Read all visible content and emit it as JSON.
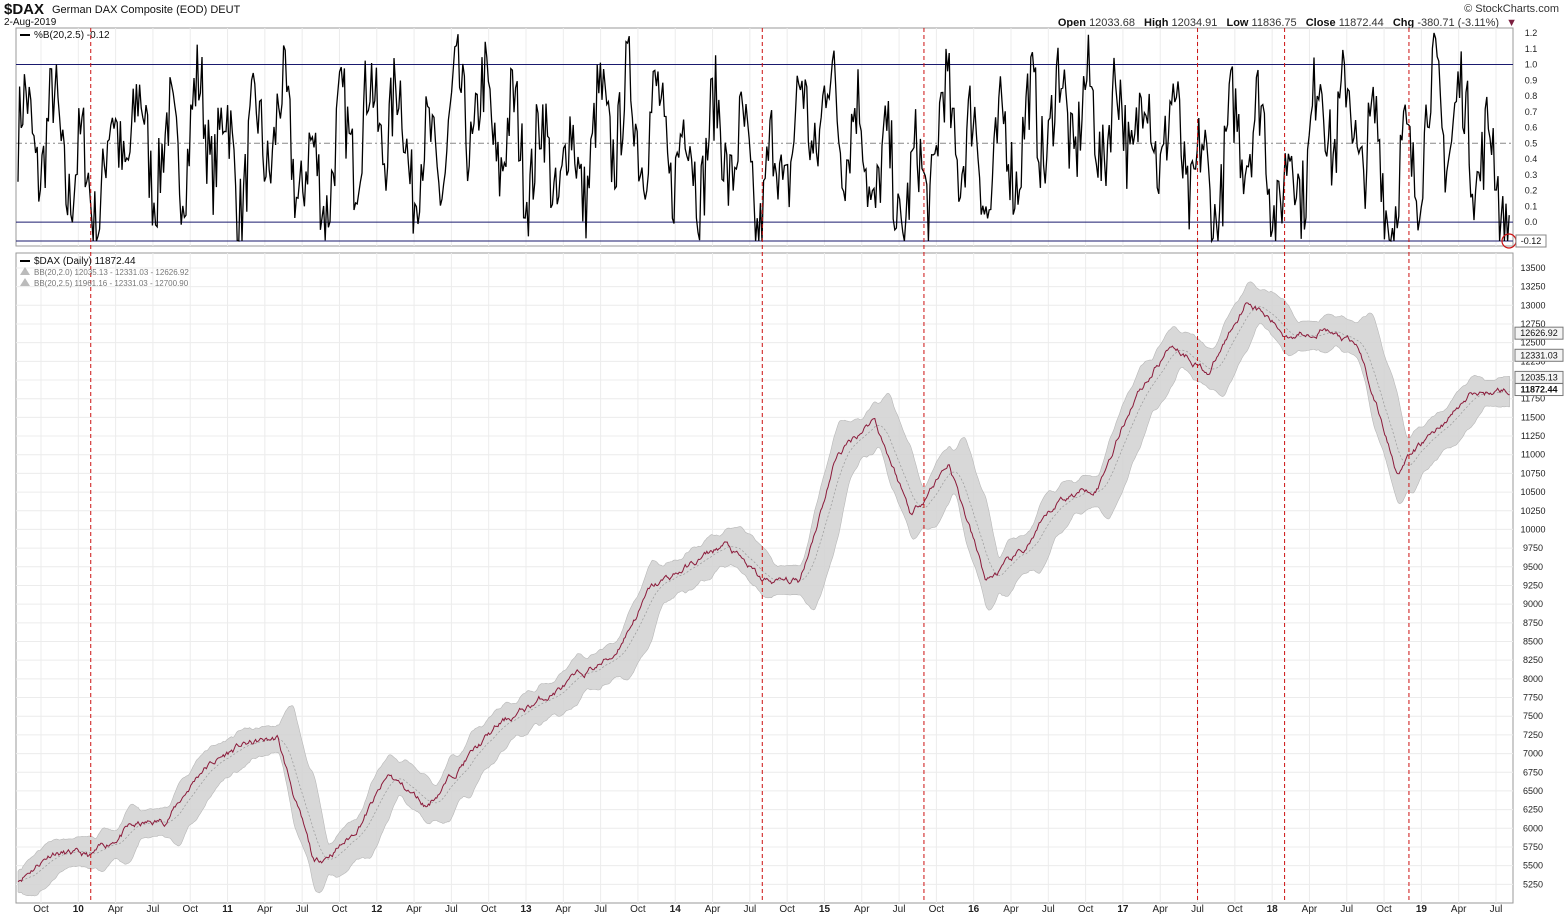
{
  "header": {
    "symbol": "$DAX",
    "description": "German DAX Composite (EOD)",
    "exchange": "DEUT",
    "date": "2-Aug-2019",
    "brand": "© StockCharts.com",
    "open_label": "Open",
    "open": "12033.68",
    "high_label": "High",
    "high": "12034.91",
    "low_label": "Low",
    "low": "11836.75",
    "close_label": "Close",
    "close": "11872.44",
    "chg_label": "Chg",
    "chg": "-380.71 (-3.11%)",
    "chg_icon": "down-triangle-icon"
  },
  "colors": {
    "price_line": "#8b1a3a",
    "band_fill": "#d4d4d4",
    "band_line": "#b0b0b0",
    "signal_line": "#cc1111",
    "indicator_line": "#000000",
    "ref_line": "#1a1a6e"
  },
  "chart_data": [
    {
      "type": "line",
      "title": "%B(20,2.5) -0.12",
      "ylim": [
        -0.12,
        1.2
      ],
      "y_ticks": [
        "1.2",
        "1.1",
        "1.0",
        "0.9",
        "0.8",
        "0.7",
        "0.6",
        "0.5",
        "0.4",
        "0.3",
        "0.2",
        "0.1",
        "0.0"
      ],
      "reference_lines": [
        1.0,
        0.5,
        0.0,
        -0.12
      ],
      "last_value_label": "-0.12",
      "last_value": -0.12,
      "x": [
        "2009-08",
        "2009-11",
        "2010-02",
        "2010-05",
        "2010-08",
        "2010-11",
        "2011-02",
        "2011-05",
        "2011-08",
        "2011-11",
        "2012-02",
        "2012-05",
        "2012-08",
        "2012-11",
        "2013-02",
        "2013-05",
        "2013-08",
        "2013-11",
        "2014-02",
        "2014-05",
        "2014-08",
        "2014-11",
        "2015-02",
        "2015-05",
        "2015-08",
        "2015-11",
        "2016-02",
        "2016-05",
        "2016-08",
        "2016-11",
        "2017-02",
        "2017-05",
        "2017-08",
        "2017-11",
        "2018-02",
        "2018-05",
        "2018-08",
        "2018-11",
        "2019-02",
        "2019-05",
        "2019-08"
      ],
      "values": [
        0.55,
        0.6,
        -0.05,
        0.7,
        0.3,
        0.8,
        0.2,
        0.75,
        0.0,
        0.65,
        0.85,
        0.15,
        0.9,
        0.6,
        0.35,
        0.2,
        0.8,
        0.7,
        0.3,
        0.6,
        -0.12,
        0.7,
        0.9,
        0.2,
        -0.12,
        0.8,
        0.15,
        0.6,
        0.85,
        0.7,
        0.75,
        0.6,
        -0.1,
        0.85,
        -0.12,
        0.9,
        0.65,
        -0.1,
        0.9,
        0.6,
        -0.12
      ]
    },
    {
      "type": "line",
      "title": "$DAX (Daily) 11872.44",
      "legend": [
        {
          "name": "$DAX (Daily) 11872.44"
        },
        {
          "name": "BB(20,2.0) 12035.13 - 12331.03 - 12626.92"
        },
        {
          "name": "BB(20,2.5) 11961.16 - 12331.03 - 12700.90"
        }
      ],
      "ylim": [
        5000,
        13700
      ],
      "y_ticks": [
        "13500",
        "13250",
        "13000",
        "12750",
        "12500",
        "12250",
        "12000",
        "11750",
        "11500",
        "11250",
        "11000",
        "10750",
        "10500",
        "10250",
        "10000",
        "9750",
        "9500",
        "9250",
        "9000",
        "8750",
        "8500",
        "8250",
        "8000",
        "7750",
        "7500",
        "7250",
        "7000",
        "6750",
        "6500",
        "6250",
        "6000",
        "5750",
        "5500",
        "5250"
      ],
      "right_labels": [
        "12626.92",
        "12331.03",
        "12035.13",
        "11872.44"
      ],
      "x_ticks": [
        "Oct",
        "10",
        "Apr",
        "Jul",
        "Oct",
        "11",
        "Apr",
        "Jul",
        "Oct",
        "12",
        "Apr",
        "Jul",
        "Oct",
        "13",
        "Apr",
        "Jul",
        "Oct",
        "14",
        "Apr",
        "Jul",
        "Oct",
        "15",
        "Apr",
        "Jul",
        "Oct",
        "16",
        "Apr",
        "Jul",
        "Oct",
        "17",
        "Apr",
        "Jul",
        "Oct",
        "18",
        "Apr",
        "Jul",
        "Oct",
        "19",
        "Apr",
        "Jul"
      ],
      "signal_dates": [
        "2010-02",
        "2014-08",
        "2015-09",
        "2017-07",
        "2018-02",
        "2018-12"
      ],
      "x": [
        "2009-08",
        "2009-11",
        "2010-02",
        "2010-05",
        "2010-08",
        "2010-11",
        "2011-02",
        "2011-05",
        "2011-08",
        "2011-11",
        "2012-02",
        "2012-05",
        "2012-08",
        "2012-11",
        "2013-02",
        "2013-05",
        "2013-08",
        "2013-11",
        "2014-02",
        "2014-05",
        "2014-08",
        "2014-11",
        "2015-02",
        "2015-05",
        "2015-08",
        "2015-11",
        "2016-02",
        "2016-05",
        "2016-08",
        "2016-11",
        "2017-02",
        "2017-05",
        "2017-08",
        "2017-11",
        "2018-02",
        "2018-05",
        "2018-08",
        "2018-11",
        "2019-02",
        "2019-05",
        "2019-08"
      ],
      "values": [
        5300,
        5700,
        5600,
        6000,
        6100,
        6800,
        7100,
        7200,
        5500,
        5900,
        6700,
        6300,
        6900,
        7400,
        7700,
        8000,
        8300,
        9200,
        9500,
        9800,
        9300,
        9300,
        11000,
        11500,
        10200,
        10900,
        9300,
        9700,
        10400,
        10600,
        11800,
        12500,
        12100,
        13100,
        12600,
        12700,
        12400,
        10800,
        11300,
        11800,
        11872.44
      ]
    }
  ]
}
